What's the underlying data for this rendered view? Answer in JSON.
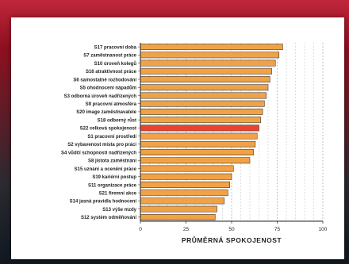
{
  "chart_data": {
    "type": "bar",
    "orientation": "horizontal",
    "categories": [
      "S17 pracovní doba",
      "S7 zaměstnanost práce",
      "S10 úroveň kolegů",
      "S16 atraktivnost práce",
      "S6 samostatné rozhodování",
      "S5 ohodnocení nápadům",
      "S3 odborná úroveň nadřízených",
      "S9 pracovní atmosféra",
      "S20 image zaměstnavatele",
      "S18 odborný růst",
      "S22 celková spokojenost",
      "S1 pracovní prostředí",
      "S2 vybavenost místa pro práci",
      "S4 vůdčí schopnosti nadřízených",
      "S8 jistota zaměstnání",
      "S15 uznání a ocenění práce",
      "S19 kariérní postup",
      "S11 organizace práce",
      "S21 firemní akce",
      "S14 jasná pravidla hodnocení",
      "S13 výše mzdy",
      "S12 systém odměňování"
    ],
    "values": [
      78,
      76,
      74,
      72,
      71,
      70,
      69,
      68,
      67,
      66,
      65,
      64,
      63,
      62,
      60,
      51,
      50,
      49,
      48,
      46,
      42,
      41
    ],
    "highlight_index": 10,
    "xlim": [
      0,
      100
    ],
    "xticks": [
      "0",
      "25",
      "50",
      "75",
      "100"
    ],
    "xlabel": "PRŮMĚRNÁ SPOKOJENOST",
    "colors": {
      "bar": "#f0a247",
      "highlight": "#e8432e",
      "outline": "#222222"
    },
    "grid": "vertical dashed"
  }
}
